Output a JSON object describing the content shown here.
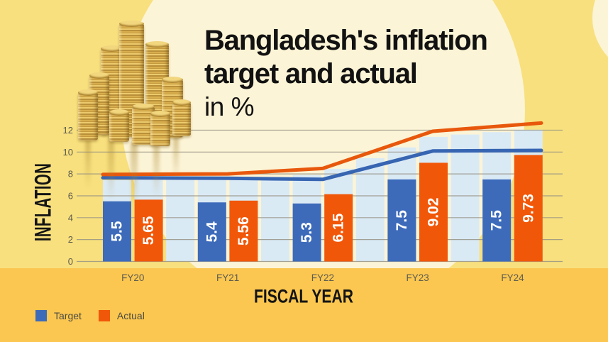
{
  "title": {
    "line1": "Bangladesh's inflation",
    "line2": "target and actual",
    "line3": "in %"
  },
  "axes": {
    "y_title": "INFLATION",
    "x_title": "FISCAL YEAR"
  },
  "legend": {
    "items": [
      {
        "label": "Target"
      },
      {
        "label": "Actual"
      }
    ]
  },
  "colors": {
    "background": "#F8E07E",
    "circle": "#FCF4D6",
    "band": "#FBC750",
    "target": "#3D6BBA",
    "actual": "#F15708",
    "backdrop": "#DAEAF5",
    "line_target": "#3765B2",
    "line_actual": "#E8580C",
    "grid": "rgba(150,147,133,0.85)",
    "tick_text": "#5b584e",
    "bar_label": "#ffffff"
  },
  "chart_data": {
    "type": "bar",
    "title": "Bangladesh's inflation target and actual in %",
    "xlabel": "FISCAL YEAR",
    "ylabel": "INFLATION",
    "categories": [
      "FY20",
      "FY21",
      "FY22",
      "FY23",
      "FY24"
    ],
    "series": [
      {
        "name": "Target",
        "color": "#3D6BBA",
        "values": [
          5.5,
          5.4,
          5.3,
          7.5,
          7.5
        ]
      },
      {
        "name": "Actual",
        "color": "#F15708",
        "values": [
          5.65,
          5.56,
          6.15,
          9.02,
          9.73
        ]
      }
    ],
    "bar_labels": [
      [
        "5.5",
        "5.4",
        "5.3",
        "7.5",
        "7.5"
      ],
      [
        "5.65",
        "5.56",
        "6.15",
        "9.02",
        "9.73"
      ]
    ],
    "trend_lines": [
      {
        "name": "Target trend",
        "color": "#3765B2",
        "values": [
          7.65,
          7.6,
          7.5,
          10.1,
          10.15
        ]
      },
      {
        "name": "Actual trend",
        "color": "#E8580C",
        "values": [
          7.95,
          8.0,
          8.5,
          11.9,
          12.65
        ]
      }
    ],
    "ylim": [
      0,
      12
    ],
    "yticks": [
      0,
      2,
      4,
      6,
      8,
      10,
      12
    ],
    "grid": true,
    "legend_position": "bottom-left"
  }
}
